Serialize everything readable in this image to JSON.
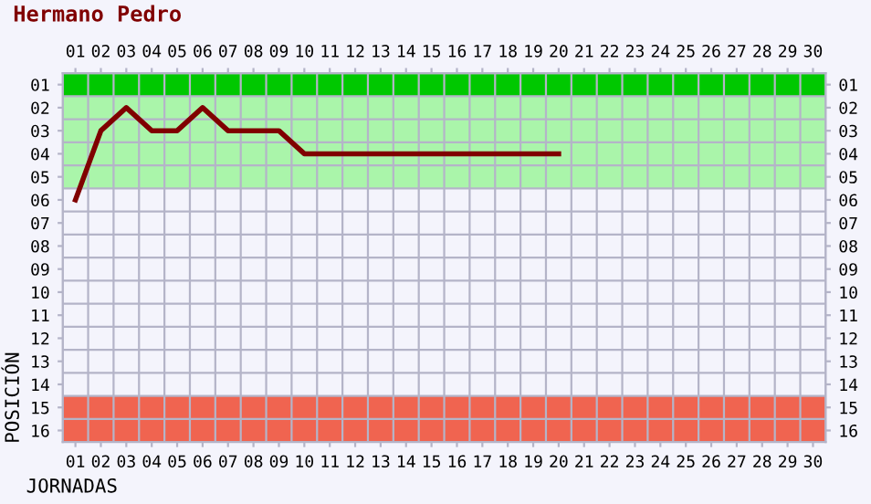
{
  "chart_data": {
    "type": "line",
    "title": "Hermano Pedro",
    "xlabel": "JORNADAS",
    "ylabel": "POSICIÓN",
    "categories": [
      "01",
      "02",
      "03",
      "04",
      "05",
      "06",
      "07",
      "08",
      "09",
      "10",
      "11",
      "12",
      "13",
      "14",
      "15",
      "16",
      "17",
      "18",
      "19",
      "20",
      "21",
      "22",
      "23",
      "24",
      "25",
      "26",
      "27",
      "28",
      "29",
      "30"
    ],
    "series": [
      {
        "color": "#800000",
        "values": [
          6,
          3,
          2,
          3,
          3,
          2,
          3,
          3,
          3,
          4,
          4,
          4,
          4,
          4,
          4,
          4,
          4,
          4,
          4,
          4,
          null,
          null,
          null,
          null,
          null,
          null,
          null,
          null,
          null,
          null
        ]
      }
    ],
    "ylim": [
      16.5,
      0.5
    ],
    "yticks": [
      {
        "value": 1,
        "label": "01"
      },
      {
        "value": 2,
        "label": "02"
      },
      {
        "value": 3,
        "label": "03"
      },
      {
        "value": 4,
        "label": "04"
      },
      {
        "value": 5,
        "label": "05"
      },
      {
        "value": 6,
        "label": "06"
      },
      {
        "value": 7,
        "label": "07"
      },
      {
        "value": 8,
        "label": "08"
      },
      {
        "value": 9,
        "label": "09"
      },
      {
        "value": 10,
        "label": "10"
      },
      {
        "value": 11,
        "label": "11"
      },
      {
        "value": 12,
        "label": "12"
      },
      {
        "value": 13,
        "label": "13"
      },
      {
        "value": 14,
        "label": "14"
      },
      {
        "value": 15,
        "label": "15"
      },
      {
        "value": 16,
        "label": "16"
      }
    ],
    "y2lim": [
      16.5,
      0.5
    ],
    "y2ticks": [
      {
        "value": 1,
        "label": "01"
      },
      {
        "value": 2,
        "label": "02"
      },
      {
        "value": 3,
        "label": "03"
      },
      {
        "value": 4,
        "label": "04"
      },
      {
        "value": 5,
        "label": "05"
      },
      {
        "value": 6,
        "label": "06"
      },
      {
        "value": 7,
        "label": "07"
      },
      {
        "value": 8,
        "label": "08"
      },
      {
        "value": 9,
        "label": "09"
      },
      {
        "value": 10,
        "label": "10"
      },
      {
        "value": 11,
        "label": "11"
      },
      {
        "value": 12,
        "label": "12"
      },
      {
        "value": 13,
        "label": "13"
      },
      {
        "value": 14,
        "label": "14"
      },
      {
        "value": 15,
        "label": "15"
      },
      {
        "value": 16,
        "label": "16"
      }
    ],
    "bands": [
      {
        "axis": "y",
        "from": 0.5,
        "to": 1.5,
        "color": "#00c800"
      },
      {
        "axis": "y",
        "from": 1.5,
        "to": 5.5,
        "color": "#aaf5aa"
      },
      {
        "axis": "y",
        "from": 14.5,
        "to": 16.5,
        "color": "#f06450"
      }
    ],
    "grid": true,
    "legend": false,
    "marker": "none",
    "line_style": "solid"
  }
}
